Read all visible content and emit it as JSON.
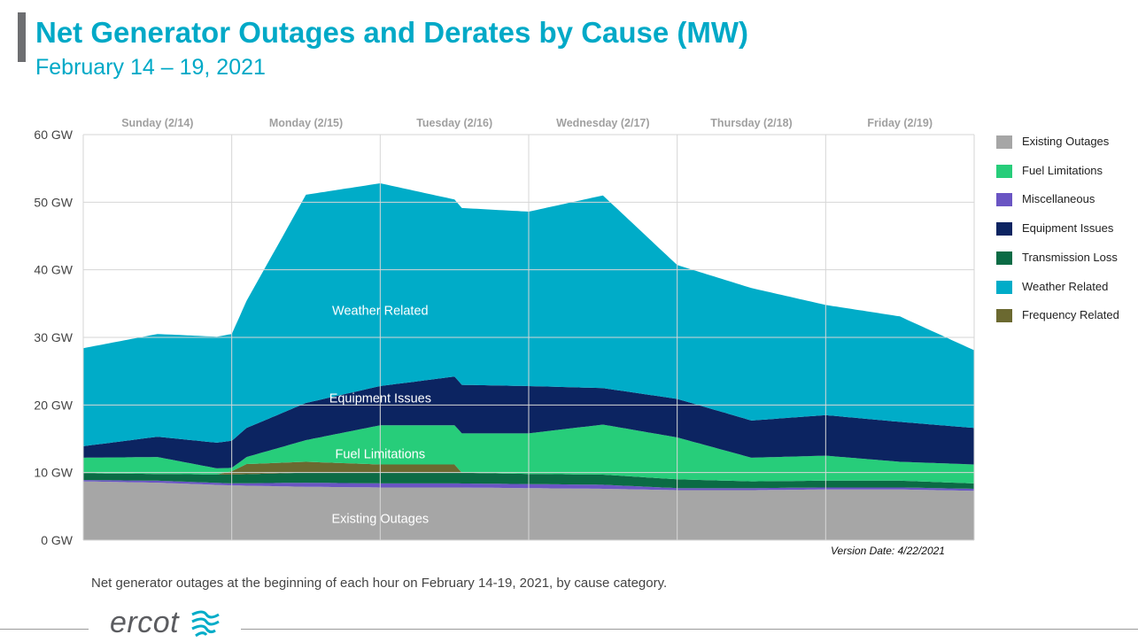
{
  "header": {
    "title": "Net Generator Outages and Derates by Cause (MW)",
    "subtitle": "February 14 – 19, 2021"
  },
  "chart_data": {
    "type": "area",
    "stacked": true,
    "x_unit": "day index from start of Sunday 2/14",
    "day_labels": [
      "Sunday (2/14)",
      "Monday (2/15)",
      "Tuesday (2/16)",
      "Wednesday (2/17)",
      "Thursday (2/18)",
      "Friday (2/19)"
    ],
    "xlim": [
      0,
      6
    ],
    "y_ticks": [
      "0 GW",
      "10 GW",
      "20 GW",
      "30 GW",
      "40 GW",
      "50 GW",
      "60 GW"
    ],
    "ylim": [
      0,
      60
    ],
    "y_unit": "GW",
    "grid": true,
    "legend_position": "right",
    "series": [
      {
        "name": "Existing Outages",
        "color": "#a6a6a6",
        "x": [
          0,
          0.5,
          1,
          1.5,
          2,
          2.5,
          3,
          3.5,
          4,
          4.5,
          5,
          5.5,
          6
        ],
        "values": [
          8.7,
          8.5,
          8.1,
          7.9,
          7.8,
          7.8,
          7.7,
          7.6,
          7.4,
          7.4,
          7.5,
          7.5,
          7.3
        ]
      },
      {
        "name": "Miscellaneous",
        "color": "#6a55c3",
        "x": [
          0,
          0.5,
          1,
          1.5,
          2,
          2.5,
          3,
          3.5,
          4,
          4.5,
          5,
          5.5,
          6
        ],
        "values": [
          0.2,
          0.3,
          0.3,
          0.6,
          0.6,
          0.6,
          0.6,
          0.6,
          0.3,
          0.3,
          0.3,
          0.3,
          0.3
        ]
      },
      {
        "name": "Transmission Loss",
        "color": "#0b6b45",
        "x": [
          0,
          0.5,
          1,
          1.5,
          2,
          2.5,
          3,
          3.5,
          4,
          4.5,
          5,
          5.5,
          6
        ],
        "values": [
          1.0,
          1.0,
          1.3,
          1.5,
          1.6,
          1.6,
          1.5,
          1.5,
          1.3,
          1.0,
          1.0,
          1.0,
          0.8
        ]
      },
      {
        "name": "Frequency Related",
        "color": "#6b6930",
        "x": [
          0,
          0.5,
          0.9,
          1.0,
          1.1,
          1.5,
          2.0,
          2.5,
          2.55,
          3,
          6
        ],
        "values": [
          0,
          0,
          0,
          0.5,
          1.5,
          1.6,
          1.2,
          1.2,
          0,
          0,
          0
        ]
      },
      {
        "name": "Fuel  Limitations",
        "color": "#27cd7a",
        "x": [
          0,
          0.5,
          1,
          1.5,
          2,
          2.5,
          3,
          3.5,
          4,
          4.5,
          5,
          5.5,
          6
        ],
        "values": [
          2.3,
          2.5,
          0.5,
          3.2,
          5.8,
          5.8,
          6.0,
          7.4,
          6.2,
          3.5,
          3.7,
          2.8,
          2.8
        ]
      },
      {
        "name": "Equipment Issues",
        "color": "#0c2461",
        "x": [
          0,
          0.5,
          1,
          1.5,
          2,
          2.5,
          3,
          3.5,
          4,
          4.5,
          5,
          5.5,
          6
        ],
        "values": [
          1.7,
          3.0,
          4.0,
          5.5,
          5.8,
          7.2,
          7.0,
          5.4,
          5.7,
          5.5,
          6.0,
          5.9,
          5.4
        ]
      },
      {
        "name": "Weather Related",
        "color": "#00acc8",
        "x": [
          0,
          0.5,
          1,
          1.5,
          2,
          2.5,
          3,
          3.5,
          4,
          4.5,
          5,
          5.5,
          6
        ],
        "values": [
          14.5,
          15.2,
          15.8,
          30.8,
          30.0,
          26.2,
          25.8,
          28.5,
          19.8,
          19.6,
          16.3,
          15.6,
          11.5
        ]
      }
    ],
    "area_labels": [
      {
        "text": "Weather Related",
        "color": "#ffffff"
      },
      {
        "text": "Equipment Issues",
        "color": "#ffffff"
      },
      {
        "text": "Fuel Limitations",
        "color": "#ffffff"
      },
      {
        "text": "Existing Outages",
        "color": "#ffffff"
      }
    ]
  },
  "legend": {
    "items": [
      {
        "label": "Existing Outages",
        "color": "#a6a6a6"
      },
      {
        "label": "Fuel  Limitations",
        "color": "#27cd7a"
      },
      {
        "label": "Miscellaneous",
        "color": "#6a55c3"
      },
      {
        "label": "Equipment Issues",
        "color": "#0c2461"
      },
      {
        "label": "Transmission Loss",
        "color": "#0b6b45"
      },
      {
        "label": "Weather Related",
        "color": "#00acc8"
      },
      {
        "label": "Frequency Related",
        "color": "#6b6930"
      }
    ]
  },
  "version_note": "Version Date: 4/22/2021",
  "caption": "Net generator outages at the beginning of each hour on February 14-19, 2021, by cause category.",
  "footer": {
    "logo_text": "ercot",
    "logo_icon": "ercot-swirl-icon",
    "logo_color": "#5b5c60"
  }
}
